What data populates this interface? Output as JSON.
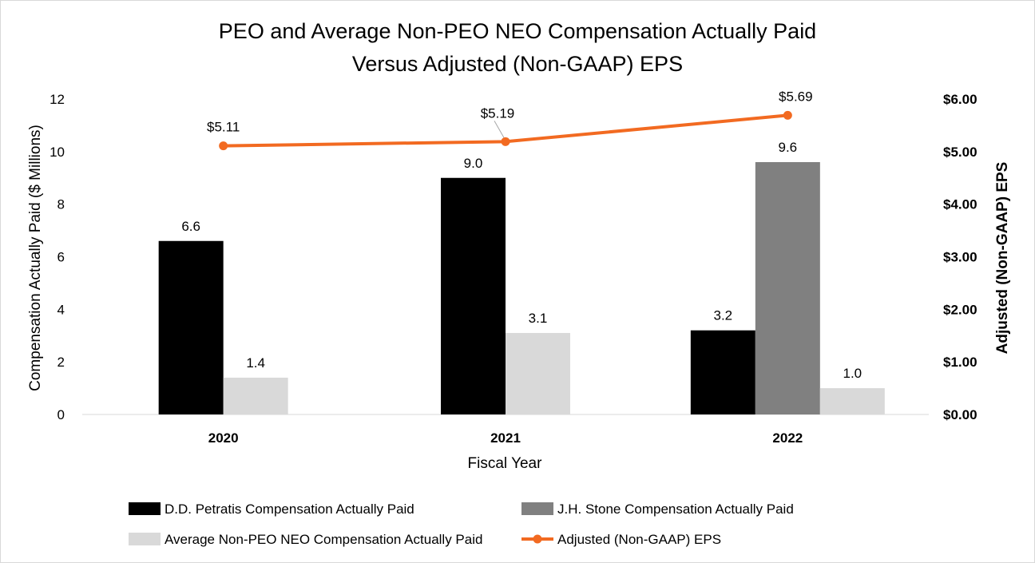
{
  "chart_data": {
    "type": "bar",
    "title_line1": "PEO and Average Non-PEO NEO Compensation Actually Paid",
    "title_line2": "Versus Adjusted (Non-GAAP) EPS",
    "xlabel": "Fiscal Year",
    "ylabel": "Compensation Actually Paid ($ Millions)",
    "y2label": "Adjusted (Non-GAAP) EPS",
    "categories": [
      "2020",
      "2021",
      "2022"
    ],
    "ylim": [
      0,
      12
    ],
    "yticks": [
      "0",
      "2",
      "4",
      "6",
      "8",
      "10",
      "12"
    ],
    "y2lim": [
      0,
      6
    ],
    "y2ticks": [
      "$0.00",
      "$1.00",
      "$2.00",
      "$3.00",
      "$4.00",
      "$5.00",
      "$6.00"
    ],
    "legend_position": "bottom",
    "series": [
      {
        "name": "D.D. Petratis Compensation Actually Paid",
        "type": "bar",
        "color": "#000000",
        "values": [
          6.6,
          9.0,
          3.2
        ],
        "labels": [
          "6.6",
          "9.0",
          "3.2"
        ]
      },
      {
        "name": "J.H. Stone Compensation Actually Paid",
        "type": "bar",
        "color": "#808080",
        "values": [
          null,
          null,
          9.6
        ],
        "labels": [
          null,
          null,
          "9.6"
        ]
      },
      {
        "name": "Average Non-PEO NEO Compensation Actually Paid",
        "type": "bar",
        "color": "#d9d9d9",
        "values": [
          1.4,
          3.1,
          1.0
        ],
        "labels": [
          "1.4",
          "3.1",
          "1.0"
        ]
      },
      {
        "name": "Adjusted (Non-GAAP) EPS",
        "type": "line",
        "axis": "right",
        "color": "#f26a21",
        "values": [
          5.11,
          5.19,
          5.69
        ],
        "labels": [
          "$5.11",
          "$5.19",
          "$5.69"
        ]
      }
    ]
  }
}
